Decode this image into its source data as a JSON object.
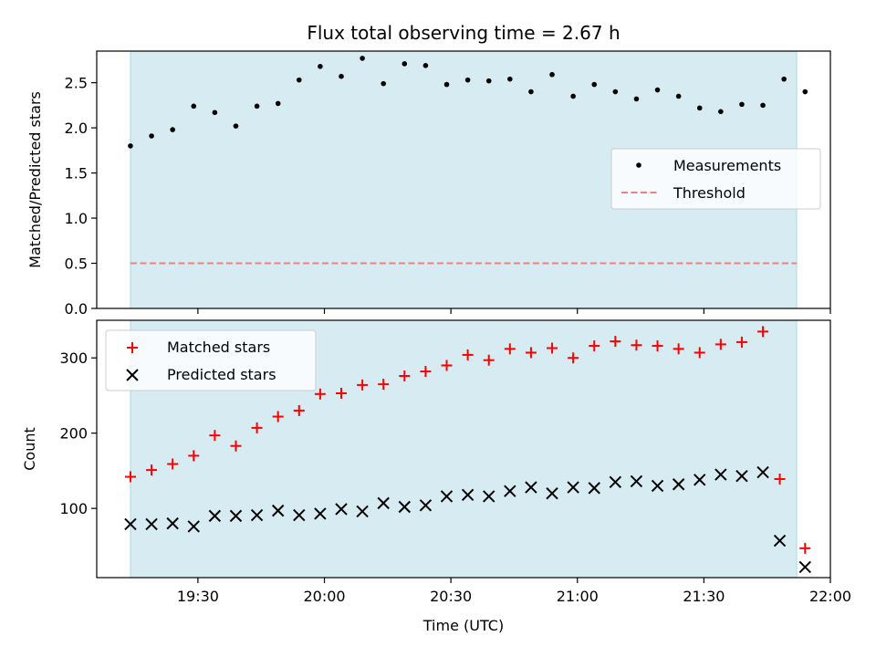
{
  "chart_data": [
    {
      "type": "scatter",
      "title": "Flux total observing time = 2.67 h",
      "ylabel": "Matched/Predicted stars",
      "xlabel": "",
      "ylim": [
        0,
        2.85
      ],
      "yticks": [
        "0.0",
        "0.5",
        "1.0",
        "1.5",
        "2.0",
        "2.5"
      ],
      "yticks_values": [
        0,
        0.5,
        1.0,
        1.5,
        2.0,
        2.5
      ],
      "grid": false,
      "legend": {
        "placement": "center-right",
        "entries": [
          "Measurements",
          "Threshold"
        ]
      },
      "shaded_span": {
        "x": [
          "19:14",
          "21:52"
        ],
        "color": "#add8e6"
      },
      "series": [
        {
          "name": "Measurements",
          "marker": "dot",
          "color": "#000000",
          "x": [
            "19:14",
            "19:19",
            "19:24",
            "19:29",
            "19:34",
            "19:39",
            "19:44",
            "19:49",
            "19:54",
            "19:59",
            "20:04",
            "20:09",
            "20:14",
            "20:19",
            "20:24",
            "20:29",
            "20:34",
            "20:39",
            "20:44",
            "20:49",
            "20:54",
            "20:59",
            "21:04",
            "21:09",
            "21:14",
            "21:19",
            "21:24",
            "21:29",
            "21:34",
            "21:39",
            "21:44",
            "21:49",
            "21:54"
          ],
          "y": [
            1.8,
            1.91,
            1.98,
            2.24,
            2.17,
            2.02,
            2.24,
            2.27,
            2.53,
            2.68,
            2.57,
            2.77,
            2.49,
            2.71,
            2.69,
            2.48,
            2.53,
            2.52,
            2.54,
            2.4,
            2.59,
            2.35,
            2.48,
            2.4,
            2.32,
            2.42,
            2.35,
            2.22,
            2.18,
            2.26,
            2.25,
            2.54,
            2.4
          ]
        },
        {
          "name": "Threshold",
          "marker": "dashed-line",
          "color": "#f08080",
          "x": [
            "19:14",
            "21:52"
          ],
          "y": [
            0.5,
            0.5
          ]
        }
      ]
    },
    {
      "type": "scatter",
      "title": "",
      "ylabel": "Count",
      "xlabel": "Time (UTC)",
      "ylim": [
        8,
        350
      ],
      "yticks": [
        "100",
        "200",
        "300"
      ],
      "yticks_values": [
        100,
        200,
        300
      ],
      "xlim": [
        "19:06",
        "22:00"
      ],
      "xticks": [
        "19:30",
        "20:00",
        "20:30",
        "21:00",
        "21:30",
        "22:00"
      ],
      "grid": false,
      "legend": {
        "placement": "top-left",
        "entries": [
          "Matched stars",
          "Predicted stars"
        ]
      },
      "shaded_span": {
        "x": [
          "19:14",
          "21:52"
        ],
        "color": "#add8e6"
      },
      "series": [
        {
          "name": "Matched stars",
          "marker": "plus",
          "color": "#ff0000",
          "x": [
            "19:14",
            "19:19",
            "19:24",
            "19:29",
            "19:34",
            "19:39",
            "19:44",
            "19:49",
            "19:54",
            "19:59",
            "20:04",
            "20:09",
            "20:14",
            "20:19",
            "20:24",
            "20:29",
            "20:34",
            "20:39",
            "20:44",
            "20:49",
            "20:54",
            "20:59",
            "21:04",
            "21:09",
            "21:14",
            "21:19",
            "21:24",
            "21:29",
            "21:34",
            "21:39",
            "21:44",
            "21:48",
            "21:54"
          ],
          "y": [
            142,
            151,
            159,
            170,
            197,
            183,
            207,
            222,
            230,
            252,
            253,
            264,
            265,
            276,
            282,
            290,
            304,
            297,
            312,
            307,
            313,
            300,
            316,
            322,
            317,
            316,
            312,
            307,
            318,
            321,
            335,
            139,
            47
          ]
        },
        {
          "name": "Predicted stars",
          "marker": "x",
          "color": "#000000",
          "x": [
            "19:14",
            "19:19",
            "19:24",
            "19:29",
            "19:34",
            "19:39",
            "19:44",
            "19:49",
            "19:54",
            "19:59",
            "20:04",
            "20:09",
            "20:14",
            "20:19",
            "20:24",
            "20:29",
            "20:34",
            "20:39",
            "20:44",
            "20:49",
            "20:54",
            "20:59",
            "21:04",
            "21:09",
            "21:14",
            "21:19",
            "21:24",
            "21:29",
            "21:34",
            "21:39",
            "21:44",
            "21:48",
            "21:54"
          ],
          "y": [
            79,
            79,
            80,
            76,
            90,
            90,
            91,
            97,
            91,
            93,
            99,
            96,
            107,
            102,
            104,
            116,
            118,
            116,
            123,
            128,
            120,
            128,
            127,
            135,
            136,
            130,
            132,
            138,
            145,
            143,
            148,
            57,
            22
          ]
        }
      ]
    }
  ]
}
